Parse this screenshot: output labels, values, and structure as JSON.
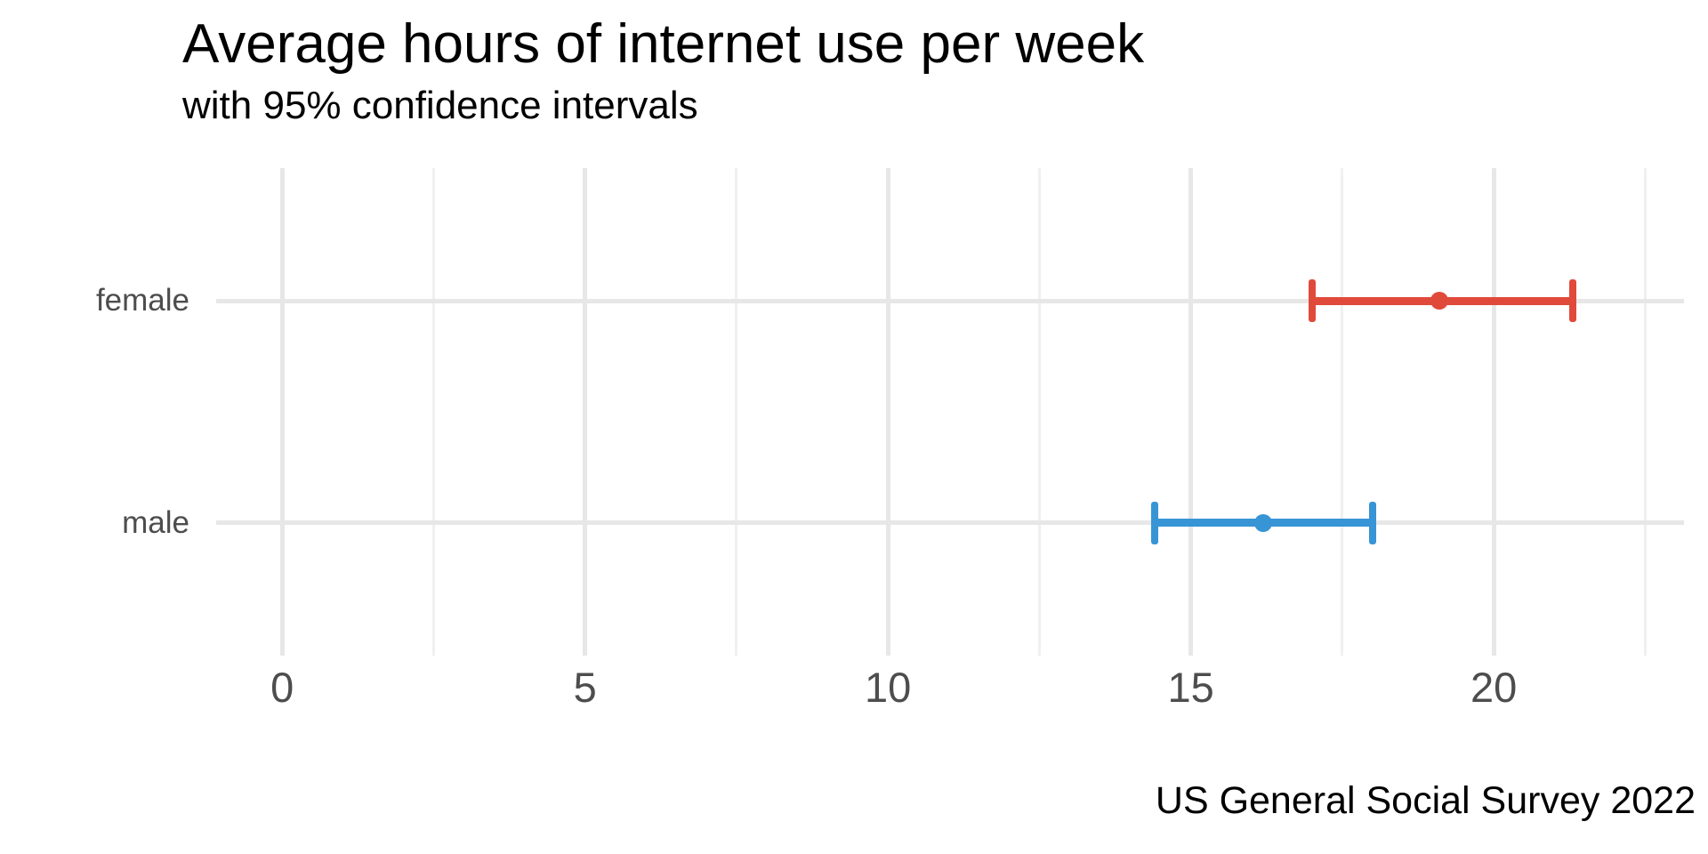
{
  "chart_data": {
    "type": "errorbar",
    "orientation": "horizontal",
    "title": "Average hours of internet use per week",
    "subtitle": "with 95% confidence intervals",
    "caption": "US General Social Survey 2022",
    "xlabel": "",
    "ylabel": "",
    "categories": [
      "female",
      "male"
    ],
    "series": [
      {
        "name": "female",
        "mean": 19.1,
        "ci_low": 17.0,
        "ci_high": 21.3,
        "ci_level": "95%",
        "color": "#e04a3a"
      },
      {
        "name": "male",
        "mean": 16.2,
        "ci_low": 14.4,
        "ci_high": 18.0,
        "ci_level": "95%",
        "color": "#3795d6"
      }
    ],
    "x_ticks": [
      0,
      5,
      10,
      15,
      20
    ],
    "x_tick_labels": [
      "0",
      "5",
      "10",
      "15",
      "20"
    ],
    "x_minor_gridlines": [
      2.5,
      7.5,
      12.5,
      17.5,
      22.5
    ],
    "xlim": [
      -1.09,
      23.14
    ],
    "grid": "on",
    "legend": "none"
  },
  "colors": {
    "background": "#ffffff",
    "grid_major": "#e7e7e7",
    "grid_minor": "#f0f0f0",
    "axis_text": "#4d4d4d",
    "title_text": "#000000",
    "female": "#e04a3a",
    "male": "#3795d6"
  }
}
